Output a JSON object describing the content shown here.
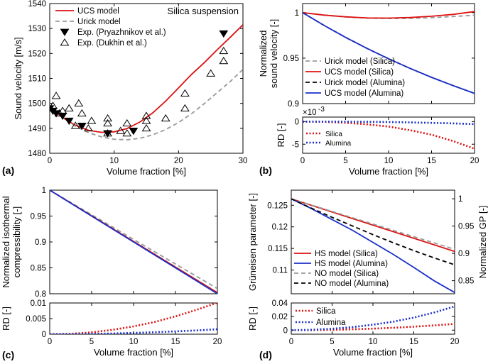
{
  "figure": {
    "panel_letters": [
      "(a)",
      "(b)",
      "(c)",
      "(d)"
    ]
  },
  "colors": {
    "red": "#dd1111",
    "gray": "#999999",
    "black": "#000000",
    "blue": "#1a2fc8"
  },
  "chart_data": [
    {
      "id": "a",
      "type": "line",
      "title": "Silica suspension",
      "xlabel": "Volume fraction [%]",
      "ylabel": "Sound velocity [m/s]",
      "xlim": [
        0,
        30
      ],
      "ylim": [
        1480,
        1540
      ],
      "xticks": [
        0,
        10,
        20,
        30
      ],
      "yticks": [
        1480,
        1490,
        1500,
        1510,
        1520,
        1530,
        1540
      ],
      "series": [
        {
          "name": "UCS model",
          "style": "solid",
          "color": "red",
          "x": [
            0,
            2,
            4,
            6,
            8,
            10,
            12,
            14,
            16,
            18,
            20,
            22,
            24,
            26,
            28,
            30
          ],
          "y": [
            1498.5,
            1494.3,
            1491.2,
            1489.2,
            1488.4,
            1488.6,
            1489.9,
            1492.5,
            1496.2,
            1500.9,
            1506.2,
            1511.6,
            1516.3,
            1521.5,
            1526.4,
            1531.5
          ]
        },
        {
          "name": "Urick model",
          "style": "dashed",
          "color": "gray",
          "x": [
            0,
            2,
            4,
            6,
            8,
            10,
            12,
            14,
            16,
            18,
            20,
            22,
            24,
            26,
            28,
            30
          ],
          "y": [
            1498.5,
            1494.2,
            1490.8,
            1488.3,
            1486.6,
            1485.6,
            1485.4,
            1486.0,
            1487.4,
            1489.5,
            1492.3,
            1495.8,
            1499.9,
            1504.3,
            1508.7,
            1513.6
          ]
        },
        {
          "name": "Exp. (Pryazhnikov et al.)",
          "style": "marker-filled-down-triangle",
          "color": "black",
          "x": [
            0,
            0.5,
            1,
            2,
            3,
            5,
            9,
            13,
            27
          ],
          "y": [
            1498,
            1497,
            1496,
            1495,
            1493,
            1491,
            1488,
            1489,
            1528
          ]
        },
        {
          "name": "Exp. (Dukhin et al.)",
          "style": "marker-open-triangle",
          "color": "black",
          "x": [
            0.5,
            1,
            1.5,
            2,
            3,
            4,
            4.5,
            5,
            6,
            6.5,
            9,
            9,
            9,
            11,
            12,
            12,
            15,
            15,
            15,
            18,
            21,
            21,
            25,
            27,
            27
          ],
          "y": [
            1499,
            1503,
            1496,
            1497,
            1498,
            1491,
            1500,
            1496,
            1490,
            1493,
            1494,
            1492,
            1488,
            1489,
            1492,
            1488,
            1495,
            1493,
            1490,
            1494,
            1504,
            1498,
            1512,
            1521,
            1517
          ]
        }
      ]
    },
    {
      "id": "b-top",
      "type": "line",
      "xlabel": "",
      "ylabel": "Normalized sound velocity [-]",
      "ylabel_lines": [
        "Normalized",
        "sound velocity [-]"
      ],
      "xlim": [
        0,
        20
      ],
      "ylim": [
        0.9,
        1.01
      ],
      "xticks": [
        0,
        5,
        10,
        15,
        20
      ],
      "yticks": [
        0.9,
        0.95,
        1
      ],
      "ytick_labels": [
        "0.9",
        "0.95",
        "1"
      ],
      "series": [
        {
          "name": "Urick model (Silica)",
          "style": "dashed",
          "color": "gray",
          "x": [
            0,
            2.5,
            5,
            7.5,
            10,
            12.5,
            15,
            17.5,
            20
          ],
          "y": [
            1.0,
            0.9973,
            0.9952,
            0.994,
            0.9935,
            0.9937,
            0.9945,
            0.9957,
            0.9972
          ]
        },
        {
          "name": "UCS model (Silica)",
          "style": "solid",
          "color": "red",
          "x": [
            0,
            2.5,
            5,
            7.5,
            10,
            12.5,
            15,
            17.5,
            20
          ],
          "y": [
            1.0,
            0.9973,
            0.9954,
            0.9942,
            0.994,
            0.9946,
            0.996,
            0.9981,
            1.0012
          ]
        },
        {
          "name": "Urick model (Alumina)",
          "style": "dashed",
          "color": "black",
          "x": [
            0,
            2.5,
            5,
            7.5,
            10,
            12.5,
            15,
            17.5,
            20
          ],
          "y": [
            1.0,
            0.9859,
            0.9728,
            0.9606,
            0.9493,
            0.9387,
            0.9289,
            0.9198,
            0.9112
          ]
        },
        {
          "name": "UCS model (Alumina)",
          "style": "solid",
          "color": "blue",
          "x": [
            0,
            2.5,
            5,
            7.5,
            10,
            12.5,
            15,
            17.5,
            20
          ],
          "y": [
            1.0,
            0.9859,
            0.9728,
            0.9606,
            0.9493,
            0.9387,
            0.9289,
            0.9198,
            0.9112
          ]
        }
      ]
    },
    {
      "id": "b-bottom",
      "type": "line",
      "xlabel": "Volume fraction [%]",
      "ylabel": "RD [-]",
      "exponent_label": "×10",
      "exponent_power": "-3",
      "xlim": [
        0,
        20
      ],
      "ylim": [
        -7,
        1
      ],
      "xticks": [
        0,
        5,
        10,
        15,
        20
      ],
      "yticks": [
        -5,
        0
      ],
      "ytick_labels": [
        "-5",
        "0"
      ],
      "series": [
        {
          "name": "Silica",
          "style": "dotted",
          "color": "red",
          "x": [
            0,
            2.5,
            5,
            7.5,
            10,
            12.5,
            15,
            17.5,
            20
          ],
          "y": [
            0,
            -0.05,
            -0.25,
            -0.6,
            -1.1,
            -1.9,
            -2.9,
            -4.3,
            -6.0
          ]
        },
        {
          "name": "Alumina",
          "style": "dotted",
          "color": "blue",
          "x": [
            0,
            2.5,
            5,
            7.5,
            10,
            12.5,
            15,
            17.5,
            20
          ],
          "y": [
            0,
            0,
            -0.02,
            -0.05,
            -0.1,
            -0.18,
            -0.28,
            -0.4,
            -0.55
          ]
        }
      ]
    },
    {
      "id": "c-top",
      "type": "line",
      "xlabel": "",
      "ylabel": "Normalized isothermal compressibility [-]",
      "ylabel_lines": [
        "Normalized isothermal",
        "compressibility [-]"
      ],
      "xlim": [
        0,
        20
      ],
      "ylim": [
        0.8,
        1
      ],
      "xticks": [
        0,
        5,
        10,
        15,
        20
      ],
      "yticks": [
        0.8,
        0.85,
        0.9,
        0.95,
        1
      ],
      "ytick_labels": [
        "0.8",
        "0.85",
        "0.9",
        "0.95",
        "1"
      ],
      "series": [
        {
          "name": "Gray dashed",
          "style": "dashed",
          "color": "gray",
          "x": [
            0,
            20
          ],
          "y": [
            1.0,
            0.81
          ]
        },
        {
          "name": "Black dashed",
          "style": "dashed",
          "color": "black",
          "x": [
            0,
            20
          ],
          "y": [
            1.0,
            0.802
          ]
        },
        {
          "name": "Red solid",
          "style": "solid",
          "color": "red",
          "x": [
            0,
            20
          ],
          "y": [
            1.0,
            0.802
          ]
        },
        {
          "name": "Blue solid",
          "style": "solid",
          "color": "blue",
          "x": [
            0,
            20
          ],
          "y": [
            1.0,
            0.8
          ]
        }
      ]
    },
    {
      "id": "c-bottom",
      "type": "line",
      "xlabel": "Volume fraction [%]",
      "ylabel": "RD [-]",
      "xlim": [
        0,
        20
      ],
      "ylim": [
        0,
        0.01
      ],
      "xticks": [
        0,
        5,
        10,
        15,
        20
      ],
      "yticks": [
        0,
        0.005,
        0.01
      ],
      "ytick_labels": [
        "0",
        "0.005",
        "0.01"
      ],
      "series": [
        {
          "name": "Red dotted",
          "style": "dotted",
          "color": "red",
          "x": [
            0,
            2.5,
            5,
            7.5,
            10,
            12.5,
            15,
            17.5,
            20
          ],
          "y": [
            0,
            0.00014,
            0.0006,
            0.0014,
            0.0025,
            0.0039,
            0.0057,
            0.0078,
            0.0101
          ]
        },
        {
          "name": "Blue dotted",
          "style": "dotted",
          "color": "blue",
          "x": [
            0,
            2.5,
            5,
            7.5,
            10,
            12.5,
            15,
            17.5,
            20
          ],
          "y": [
            0,
            2e-05,
            0.0001,
            0.00022,
            0.0004,
            0.00063,
            0.0009,
            0.0012,
            0.0016
          ]
        }
      ]
    },
    {
      "id": "d-top",
      "type": "line",
      "xlabel": "",
      "ylabel": "Grüneisen parameter [-]",
      "ylabel_right": "Normalized GP [-]",
      "xlim": [
        0,
        20
      ],
      "ylim": [
        0.1045,
        0.1285
      ],
      "xticks": [
        0,
        5,
        10,
        15,
        20
      ],
      "yticks": [
        0.11,
        0.115,
        0.12,
        0.125
      ],
      "ytick_labels": [
        "0.11",
        "0.115",
        "0.12",
        "0.125"
      ],
      "yticks_right": [
        0.85,
        0.9,
        0.95,
        1
      ],
      "ytick_labels_right": [
        "0.85",
        "0.9",
        "0.95",
        "1"
      ],
      "right_base": 0.1265,
      "series": [
        {
          "name": "HS model (Silica)",
          "style": "solid",
          "color": "red",
          "x": [
            0,
            20
          ],
          "y": [
            0.1265,
            0.1143
          ]
        },
        {
          "name": "HS model (Alumina)",
          "style": "solid",
          "color": "blue",
          "x": [
            0,
            2.5,
            5,
            7.5,
            10,
            12.5,
            15,
            17.5,
            20
          ],
          "y": [
            0.1265,
            0.1242,
            0.1217,
            0.1192,
            0.1164,
            0.1136,
            0.1106,
            0.1075,
            0.1048
          ]
        },
        {
          "name": "NO model (Silica)",
          "style": "dashed",
          "color": "gray",
          "x": [
            0,
            20
          ],
          "y": [
            0.1265,
            0.1148
          ]
        },
        {
          "name": "NO model (Alumina)",
          "style": "dashed",
          "color": "black",
          "x": [
            0,
            2.5,
            5,
            7.5,
            10,
            12.5,
            15,
            17.5,
            20
          ],
          "y": [
            0.1265,
            0.1243,
            0.1222,
            0.1202,
            0.1182,
            0.1163,
            0.1145,
            0.1128,
            0.1112
          ]
        }
      ]
    },
    {
      "id": "d-bottom",
      "type": "line",
      "xlabel": "Volume fraction [%]",
      "ylabel": "RD [-]",
      "xlim": [
        0,
        20
      ],
      "ylim": [
        -0.006,
        0.04
      ],
      "xticks": [
        0,
        5,
        10,
        15,
        20
      ],
      "yticks": [
        0,
        0.02,
        0.04
      ],
      "ytick_labels": [
        "0",
        "0.02",
        "0.04"
      ],
      "series": [
        {
          "name": "Silica",
          "style": "dotted",
          "color": "red",
          "x": [
            0,
            2.5,
            5,
            7.5,
            10,
            12.5,
            15,
            17.5,
            20
          ],
          "y": [
            0,
            0.0001,
            0.0005,
            0.0012,
            0.0022,
            0.0035,
            0.0051,
            0.007,
            0.0092
          ]
        },
        {
          "name": "Alumina",
          "style": "dotted",
          "color": "blue",
          "x": [
            0,
            2.5,
            5,
            7.5,
            10,
            12.5,
            15,
            17.5,
            20
          ],
          "y": [
            0,
            0.0005,
            0.002,
            0.0045,
            0.008,
            0.0125,
            0.0185,
            0.026,
            0.035
          ]
        }
      ]
    }
  ]
}
